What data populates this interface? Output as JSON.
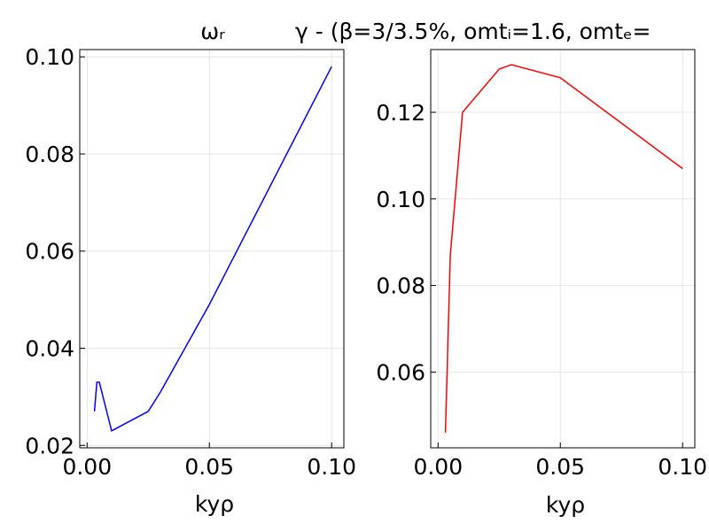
{
  "chart_data": [
    {
      "type": "line",
      "title": "ωᵣ",
      "xlabel": "kyρ",
      "ylabel": "",
      "xlim": [
        -0.003,
        0.105
      ],
      "ylim": [
        0.0195,
        0.1015
      ],
      "xticks": [
        0.0,
        0.05,
        0.1
      ],
      "xtick_labels": [
        "0.00",
        "0.05",
        "0.10"
      ],
      "yticks": [
        0.02,
        0.04,
        0.06,
        0.08,
        0.1
      ],
      "ytick_labels": [
        "0.02",
        "0.04",
        "0.06",
        "0.08",
        "0.10"
      ],
      "grid": true,
      "series": [
        {
          "color": "#0000ff",
          "x": [
            0.003,
            0.004,
            0.005,
            0.01,
            0.025,
            0.03,
            0.05,
            0.1
          ],
          "y": [
            0.027,
            0.033,
            0.033,
            0.023,
            0.027,
            0.031,
            0.049,
            0.098
          ]
        }
      ]
    },
    {
      "type": "line",
      "title": "γ - (β=3/3.5%, omtᵢ=1.6, omtₑ=",
      "xlabel": "kyρ",
      "ylabel": "",
      "xlim": [
        -0.003,
        0.105
      ],
      "ylim": [
        0.0425,
        0.1345
      ],
      "xticks": [
        0.0,
        0.05,
        0.1
      ],
      "xtick_labels": [
        "0.00",
        "0.05",
        "0.10"
      ],
      "yticks": [
        0.06,
        0.08,
        0.1,
        0.12
      ],
      "ytick_labels": [
        "0.06",
        "0.08",
        "0.10",
        "0.12"
      ],
      "grid": true,
      "series": [
        {
          "color": "#ff0000",
          "x": [
            0.003,
            0.004,
            0.005,
            0.01,
            0.025,
            0.03,
            0.05,
            0.1
          ],
          "y": [
            0.046,
            0.066,
            0.087,
            0.12,
            0.13,
            0.131,
            0.128,
            0.107
          ]
        }
      ]
    }
  ]
}
